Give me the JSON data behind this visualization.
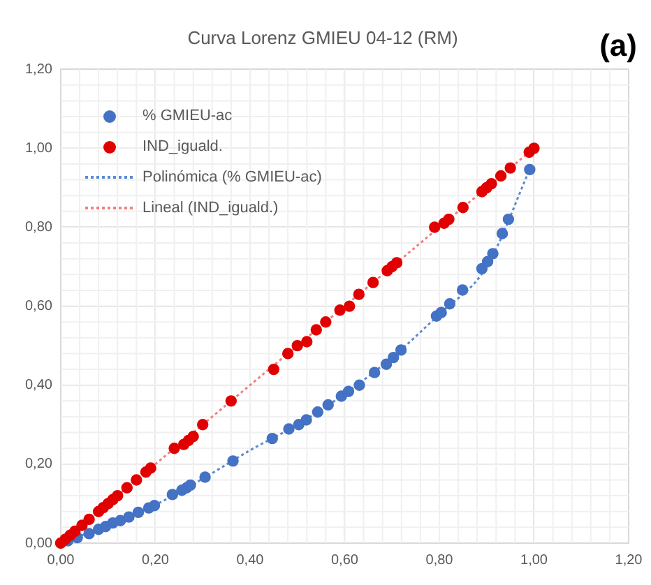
{
  "chart_data": {
    "type": "scatter",
    "title": "Curva Lorenz GMIEU 04-12 (RM)",
    "annotations": [
      "(a)"
    ],
    "xlim": [
      0,
      1.2
    ],
    "ylim": [
      0,
      1.2
    ],
    "xticks": [
      {
        "value": 0,
        "label": "0,00"
      },
      {
        "value": 0.2,
        "label": "0,20"
      },
      {
        "value": 0.4,
        "label": "0,40"
      },
      {
        "value": 0.6,
        "label": "0,60"
      },
      {
        "value": 0.8,
        "label": "0,80"
      },
      {
        "value": 1,
        "label": "1,00"
      },
      {
        "value": 1.2,
        "label": "1,20"
      }
    ],
    "yticks": [
      {
        "value": 0,
        "label": "0,00"
      },
      {
        "value": 0.2,
        "label": "0,20"
      },
      {
        "value": 0.4,
        "label": "0,40"
      },
      {
        "value": 0.6,
        "label": "0,60"
      },
      {
        "value": 0.8,
        "label": "0,80"
      },
      {
        "value": 1,
        "label": "1,00"
      },
      {
        "value": 1.2,
        "label": "1,20"
      }
    ],
    "grid": true,
    "legend": "top left",
    "marker": "circle",
    "series": [
      {
        "name": "% GMIEU-ac",
        "color": "#4472c4",
        "x": [
          0.015,
          0.035,
          0.06,
          0.08,
          0.095,
          0.11,
          0.126,
          0.144,
          0.164,
          0.186,
          0.198,
          0.236,
          0.256,
          0.266,
          0.274,
          0.305,
          0.364,
          0.447,
          0.482,
          0.503,
          0.519,
          0.543,
          0.565,
          0.593,
          0.608,
          0.631,
          0.663,
          0.688,
          0.703,
          0.719,
          0.794,
          0.804,
          0.822,
          0.849,
          0.89,
          0.902,
          0.913,
          0.933,
          0.946,
          0.991
        ],
        "values": [
          0.006,
          0.014,
          0.024,
          0.035,
          0.042,
          0.051,
          0.057,
          0.066,
          0.078,
          0.089,
          0.095,
          0.123,
          0.134,
          0.14,
          0.147,
          0.167,
          0.208,
          0.265,
          0.289,
          0.3,
          0.312,
          0.332,
          0.35,
          0.372,
          0.384,
          0.4,
          0.432,
          0.453,
          0.47,
          0.489,
          0.575,
          0.584,
          0.606,
          0.641,
          0.695,
          0.713,
          0.733,
          0.784,
          0.82,
          0.946
        ]
      },
      {
        "name": "IND_iguald.",
        "color": "#e00000",
        "x": [
          0,
          0.01,
          0.02,
          0.03,
          0.045,
          0.06,
          0.08,
          0.09,
          0.1,
          0.11,
          0.12,
          0.14,
          0.16,
          0.18,
          0.19,
          0.24,
          0.26,
          0.27,
          0.28,
          0.3,
          0.36,
          0.45,
          0.48,
          0.5,
          0.52,
          0.54,
          0.56,
          0.59,
          0.61,
          0.63,
          0.66,
          0.69,
          0.7,
          0.71,
          0.79,
          0.81,
          0.82,
          0.85,
          0.89,
          0.9,
          0.91,
          0.93,
          0.95,
          0.99,
          1
        ],
        "values": [
          0,
          0.01,
          0.02,
          0.03,
          0.045,
          0.06,
          0.08,
          0.09,
          0.1,
          0.11,
          0.12,
          0.14,
          0.16,
          0.18,
          0.19,
          0.24,
          0.25,
          0.26,
          0.27,
          0.3,
          0.36,
          0.44,
          0.48,
          0.5,
          0.51,
          0.54,
          0.56,
          0.59,
          0.6,
          0.63,
          0.66,
          0.69,
          0.7,
          0.71,
          0.8,
          0.81,
          0.82,
          0.85,
          0.89,
          0.9,
          0.91,
          0.93,
          0.95,
          0.99,
          1
        ]
      },
      {
        "name": "Polinómica (% GMIEU-ac)",
        "type": "line",
        "line_style": "dotted",
        "marker": "none",
        "color": "#5b8bd0",
        "x": [
          0,
          0.1,
          0.2,
          0.3,
          0.4,
          0.5,
          0.6,
          0.7,
          0.8,
          0.9,
          0.991
        ],
        "values": [
          0,
          0.045,
          0.097,
          0.163,
          0.235,
          0.3,
          0.378,
          0.47,
          0.58,
          0.7,
          0.946
        ]
      },
      {
        "name": "Lineal (IND_iguald.)",
        "type": "line",
        "line_style": "dotted",
        "marker": "none",
        "color": "#f08080",
        "x": [
          0,
          1
        ],
        "values": [
          0,
          1
        ]
      }
    ]
  }
}
